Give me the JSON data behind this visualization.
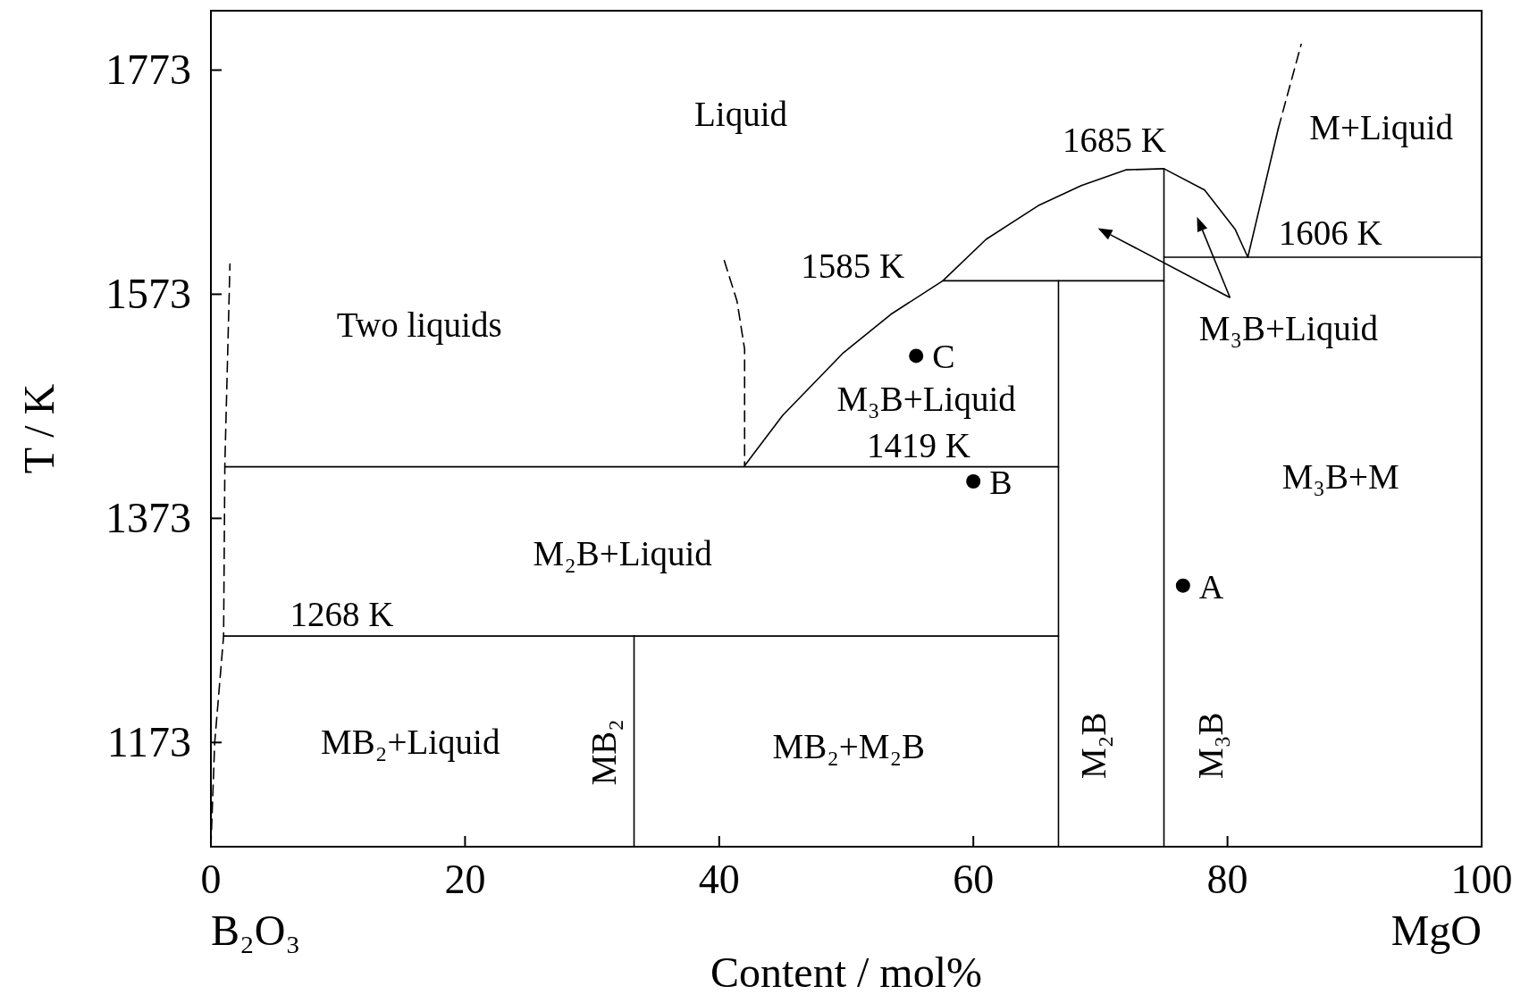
{
  "chart_data": {
    "type": "line",
    "xlabel": "Content / mol%",
    "ylabel": "T / K",
    "xlim": [
      0,
      100
    ],
    "ylim": [
      1080,
      1826
    ],
    "xticks": [
      0,
      20,
      40,
      60,
      80,
      100
    ],
    "yticks": [
      1173,
      1373,
      1573,
      1773
    ],
    "grid": false,
    "series": [
      {
        "color": "#000000",
        "line_style": "dashed",
        "x": [
          0,
          0.3,
          1.0,
          1.1,
          1.5
        ],
        "values": [
          1080,
          1173,
          1268,
          1422,
          1600
        ]
      },
      {
        "color": "#000000",
        "line_style": "solid",
        "x": [
          1.0,
          66.7
        ],
        "values": [
          1268,
          1268
        ]
      },
      {
        "color": "#000000",
        "line_style": "solid",
        "x": [
          1.1,
          66.7
        ],
        "values": [
          1419,
          1419
        ]
      },
      {
        "color": "#000000",
        "line_style": "solid",
        "x": [
          33.3,
          33.3
        ],
        "values": [
          1080,
          1268
        ]
      },
      {
        "color": "#000000",
        "line_style": "solid",
        "x": [
          66.7,
          66.7
        ],
        "values": [
          1080,
          1585
        ]
      },
      {
        "color": "#000000",
        "line_style": "solid",
        "x": [
          75,
          75
        ],
        "values": [
          1080,
          1685
        ]
      },
      {
        "color": "#000000",
        "line_style": "solid",
        "x": [
          57.6,
          75
        ],
        "values": [
          1585,
          1585
        ]
      },
      {
        "color": "#000000",
        "line_style": "solid",
        "x": [
          75,
          100
        ],
        "values": [
          1606,
          1606
        ]
      },
      {
        "color": "#000000",
        "line_style": "solid",
        "x": [
          42,
          45,
          49.7,
          53.5,
          57.6,
          61,
          65.1,
          68.5,
          72,
          75,
          78.2,
          80.6,
          81.6
        ],
        "values": [
          1420,
          1465,
          1520,
          1555,
          1585,
          1622,
          1652,
          1670,
          1684,
          1685,
          1666,
          1631,
          1606
        ]
      },
      {
        "color": "#000000",
        "line_style": "solid",
        "x": [
          81.6,
          84
        ],
        "values": [
          1606,
          1721
        ]
      },
      {
        "color": "#000000",
        "line_style": "dashed",
        "x": [
          84,
          85.8
        ],
        "values": [
          1721,
          1796
        ]
      },
      {
        "color": "#000000",
        "line_style": "dashed",
        "x": [
          40.4,
          41.4,
          42,
          42
        ],
        "values": [
          1603,
          1567,
          1524,
          1420
        ]
      },
      {
        "type": "scatter",
        "name": "C",
        "color": "#000000",
        "marker": "circle",
        "x": [
          55.5
        ],
        "values": [
          1518
        ]
      },
      {
        "type": "scatter",
        "name": "B",
        "color": "#000000",
        "marker": "circle",
        "x": [
          60
        ],
        "values": [
          1406
        ]
      },
      {
        "type": "scatter",
        "name": "A",
        "color": "#000000",
        "marker": "circle",
        "x": [
          76.5
        ],
        "values": [
          1313
        ]
      }
    ],
    "annotations": [
      "B₂O₃",
      "MgO",
      "Liquid",
      "1685 K",
      "M+Liquid",
      "1606 K",
      "1585 K",
      "Two liquids",
      "M₃B+Liquid",
      "1419 K",
      "M₃B+Liquid",
      "M₃B+M",
      "M₂B+Liquid",
      "1268 K",
      "MB₂+Liquid",
      "MB₂",
      "MB₂+M₂B",
      "M₂B",
      "M₃B"
    ]
  }
}
